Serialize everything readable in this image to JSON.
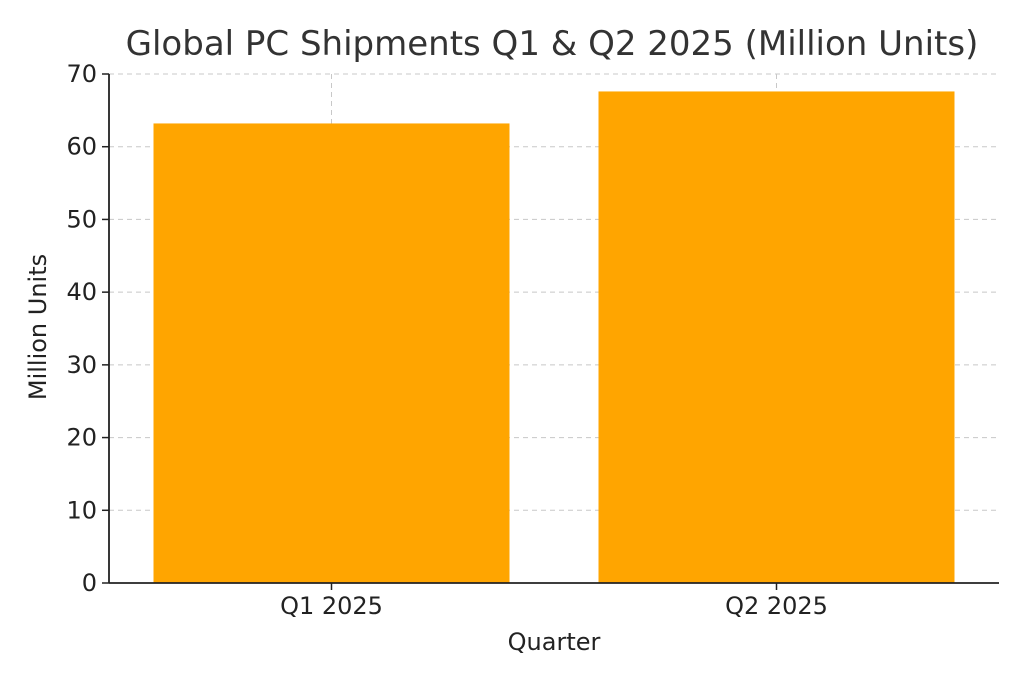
{
  "chart_data": {
    "type": "bar",
    "title": "Global PC Shipments Q1 & Q2 2025 (Million Units)",
    "xlabel": "Quarter",
    "ylabel": "Million Units",
    "categories": [
      "Q1 2025",
      "Q2 2025"
    ],
    "values": [
      63.2,
      67.6
    ],
    "ylim": [
      0,
      70
    ],
    "yticks": [
      0,
      10,
      20,
      30,
      40,
      50,
      60,
      70
    ],
    "grid": true,
    "bar_color": "#FFA500"
  }
}
